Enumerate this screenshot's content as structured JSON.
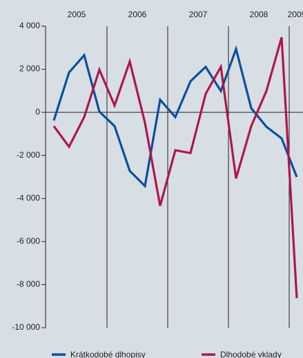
{
  "chart_data": {
    "type": "line",
    "x_groups": [
      "2005",
      "2006",
      "2007",
      "2008",
      "2009"
    ],
    "categories": [
      null,
      null,
      null,
      null,
      null,
      null,
      null,
      null,
      null,
      null,
      null,
      null,
      null,
      null,
      null,
      null,
      null
    ],
    "series": [
      {
        "name": "Krátkodobé dlhopisy",
        "color": "#0b4f9c",
        "values": [
          -380,
          1850,
          2650,
          30,
          -640,
          -2720,
          -3420,
          580,
          -220,
          1440,
          2110,
          990,
          2940,
          190,
          -670,
          -1210,
          -3000
        ]
      },
      {
        "name": "Dlhodobé vklady",
        "color": "#b0164b",
        "values": [
          -640,
          -1600,
          -220,
          1980,
          320,
          2360,
          -480,
          -4340,
          -1760,
          -1890,
          860,
          2110,
          -3070,
          -640,
          990,
          3480,
          -8630
        ]
      }
    ],
    "ylim": [
      -10000,
      4000
    ],
    "yticks": [
      {
        "value": 4000,
        "label": "4 000"
      },
      {
        "value": 2000,
        "label": "2 000"
      },
      0,
      {
        "value": -2000,
        "label": "-2 000"
      },
      {
        "value": -4000,
        "label": "-4 000"
      },
      {
        "value": -6000,
        "label": "-6 000"
      },
      {
        "value": -8000,
        "label": "-8 000"
      },
      {
        "value": -10000,
        "label": "-10 000"
      }
    ]
  }
}
